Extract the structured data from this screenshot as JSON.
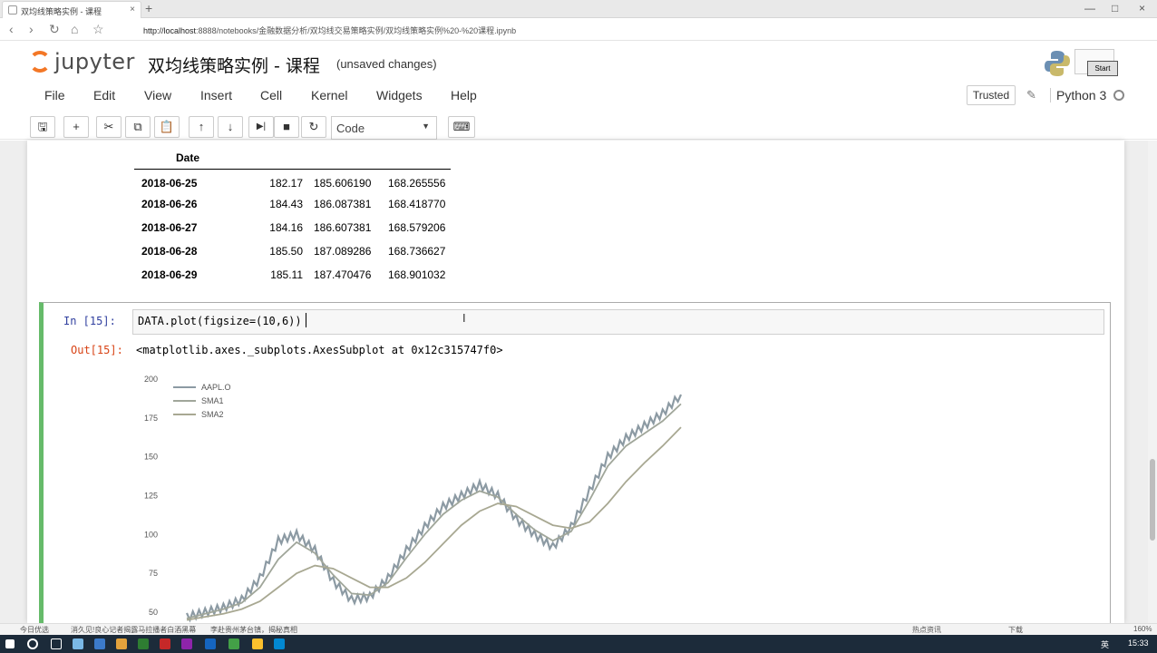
{
  "browser": {
    "tab_title": "双均线策略实例 - 课程",
    "tab_close": "×",
    "new_tab": "+",
    "url_host": "http://localhost",
    "url_rest": ":8888/notebooks/金融数据分析/双均线交易策略实例/双均线策略实例%20-%20课程.ipynb",
    "nav": {
      "back": "‹",
      "forward": "›",
      "reload": "↻",
      "home": "⌂",
      "star": "☆"
    },
    "window": {
      "minimize": "—",
      "maximize": "□",
      "close": "×"
    }
  },
  "jupyter": {
    "logo_text": "jupyter",
    "notebook_title": "双均线策略实例 - 课程",
    "unsaved": "(unsaved changes)",
    "start_button": "Start",
    "menu": [
      "File",
      "Edit",
      "View",
      "Insert",
      "Cell",
      "Kernel",
      "Widgets",
      "Help"
    ],
    "trusted": "Trusted",
    "kernel_name": "Python 3",
    "pencil_icon": "✎",
    "toolbar": {
      "save": "🖫",
      "add": "+",
      "cut": "✂",
      "copy": "⧉",
      "paste": "📋",
      "move_up": "↑",
      "move_down": "↓",
      "run": "▶|",
      "stop": "■",
      "restart": "↻",
      "cell_type": "Code",
      "cell_type_arrow": "▼",
      "keyboard": "⌨"
    }
  },
  "dataframe": {
    "index_name": "Date",
    "rows": [
      {
        "date": "2018-06-25",
        "aapl": "182.17",
        "sma1": "185.606190",
        "sma2": "168.265556"
      },
      {
        "date": "2018-06-26",
        "aapl": "184.43",
        "sma1": "186.087381",
        "sma2": "168.418770"
      },
      {
        "date": "2018-06-27",
        "aapl": "184.16",
        "sma1": "186.607381",
        "sma2": "168.579206"
      },
      {
        "date": "2018-06-28",
        "aapl": "185.50",
        "sma1": "187.089286",
        "sma2": "168.736627"
      },
      {
        "date": "2018-06-29",
        "aapl": "185.11",
        "sma1": "187.470476",
        "sma2": "168.901032"
      }
    ]
  },
  "cell": {
    "in_prompt": "In  [15]:",
    "code": "DATA.plot(figsize=(10,6))",
    "out_prompt": "Out[15]:",
    "output_text": "<matplotlib.axes._subplots.AxesSubplot at 0x12c315747f0>"
  },
  "chart_data": {
    "type": "line",
    "legend_position": "upper-left",
    "yticks": [
      50,
      75,
      100,
      125,
      150,
      175,
      200
    ],
    "ylim": [
      45,
      202
    ],
    "colors": {
      "AAPL.O": "#8c9aa3",
      "SMA1": "#a0a69a",
      "SMA2": "#a8a892"
    },
    "series": [
      {
        "name": "AAPL.O",
        "values": [
          47,
          50,
          53,
          58,
          72,
          96,
          100,
          90,
          70,
          58,
          60,
          72,
          90,
          105,
          118,
          125,
          132,
          125,
          110,
          100,
          92,
          105,
          128,
          150,
          162,
          170,
          178,
          190
        ]
      },
      {
        "name": "SMA1",
        "values": [
          46,
          49,
          52,
          56,
          66,
          84,
          95,
          88,
          74,
          62,
          61,
          69,
          85,
          100,
          113,
          122,
          128,
          124,
          113,
          103,
          96,
          102,
          122,
          144,
          157,
          165,
          173,
          184
        ]
      },
      {
        "name": "SMA2",
        "values": [
          45,
          47,
          49,
          52,
          57,
          66,
          75,
          80,
          78,
          72,
          66,
          66,
          72,
          82,
          94,
          106,
          115,
          120,
          118,
          112,
          106,
          104,
          108,
          120,
          134,
          146,
          157,
          169
        ]
      }
    ]
  },
  "statusbar": {
    "left1": "今日优选",
    "left2": "消久见!良心记者揭露马拉播者白酒黑幕",
    "left3": "李赴贵州茅台镇，揭秘真相",
    "right1": "热点资讯",
    "right2": "下载",
    "zoom": "160%"
  },
  "taskbar": {
    "ime": "英",
    "clock": "15:33"
  }
}
